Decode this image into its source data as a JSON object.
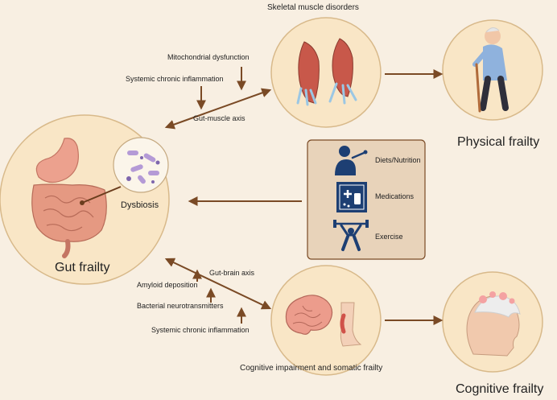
{
  "labels": {
    "skeletal_muscle_disorders": "Skeletal muscle disorders",
    "mitochondrial_dysfunction": "Mitochondrial dysfunction",
    "systemic_chronic_inflammation_top": "Systemic chronic inflammation",
    "gut_muscle_axis": "Gut-muscle axis",
    "physical_frailty": "Physical frailty",
    "dysbiosis": "Dysbiosis",
    "gut_frailty": "Gut frailty",
    "gut_brain_axis": "Gut-brain axis",
    "amyloid_deposition": "Amyloid deposition",
    "bacterial_neurotransmitters": "Bacterial neurotransmitters",
    "systemic_chronic_inflammation_bottom": "Systemic chronic inflammation",
    "cognitive_impairment_somatic_frailty": "Cognitive impairment and somatic frailty",
    "cognitive_frailty": "Cognitive frailty"
  },
  "interventions": {
    "diets": "Diets/Nutrition",
    "medications": "Medications",
    "exercise": "Exercise"
  },
  "colors": {
    "background": "#f8efe2",
    "circle_fill": "#f9e6c6",
    "circle_stroke": "#d8b98a",
    "arrow": "#7a4a25",
    "intervention_box": "#e8d3ba",
    "icon_blue": "#1d3f73"
  }
}
